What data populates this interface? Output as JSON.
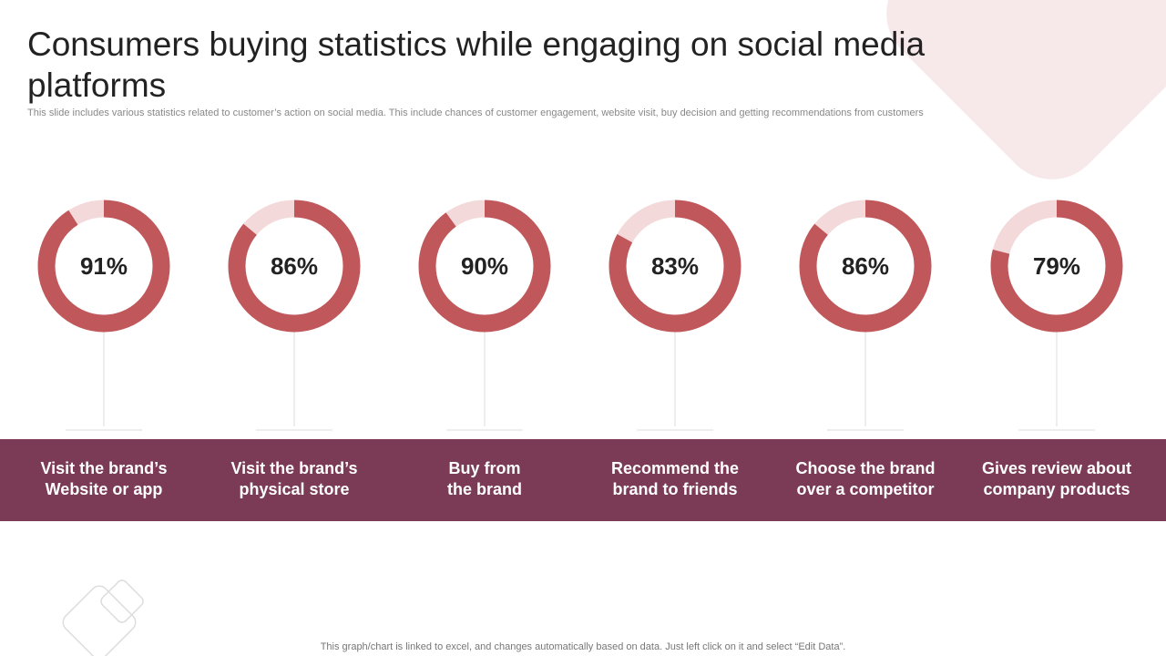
{
  "title": "Consumers buying statistics while engaging on social media platforms",
  "subtitle": "This slide includes various statistics related to customer’s action on social media. This include chances of customer engagement, website visit, buy decision and getting recommendations from customers",
  "footnote": "This graph/chart is linked to excel,  and changes automatically based on data. Just left click on it and select “Edit Data”.",
  "colors": {
    "ring": "#c0575a",
    "ring_track": "#f3d9da",
    "band": "#7b3a55",
    "connector": "#dddddd"
  },
  "chart_data": {
    "type": "pie",
    "categories": [
      "Visit the brand’s Website or app",
      "Visit the brand’s physical store",
      "Buy from the brand",
      "Recommend the brand to friends",
      "Choose the brand over a competitor",
      "Gives review about company products"
    ],
    "values": [
      91,
      86,
      90,
      83,
      86,
      79
    ],
    "value_labels": [
      "91%",
      "86%",
      "90%",
      "83%",
      "86%",
      "79%"
    ]
  },
  "labels": [
    [
      "Visit the brand’s",
      "Website or app"
    ],
    [
      "Visit the brand’s",
      "physical store"
    ],
    [
      "Buy from",
      "the brand"
    ],
    [
      "Recommend the",
      "brand to friends"
    ],
    [
      "Choose the brand",
      "over a competitor"
    ],
    [
      "Gives review about",
      "company products"
    ]
  ]
}
